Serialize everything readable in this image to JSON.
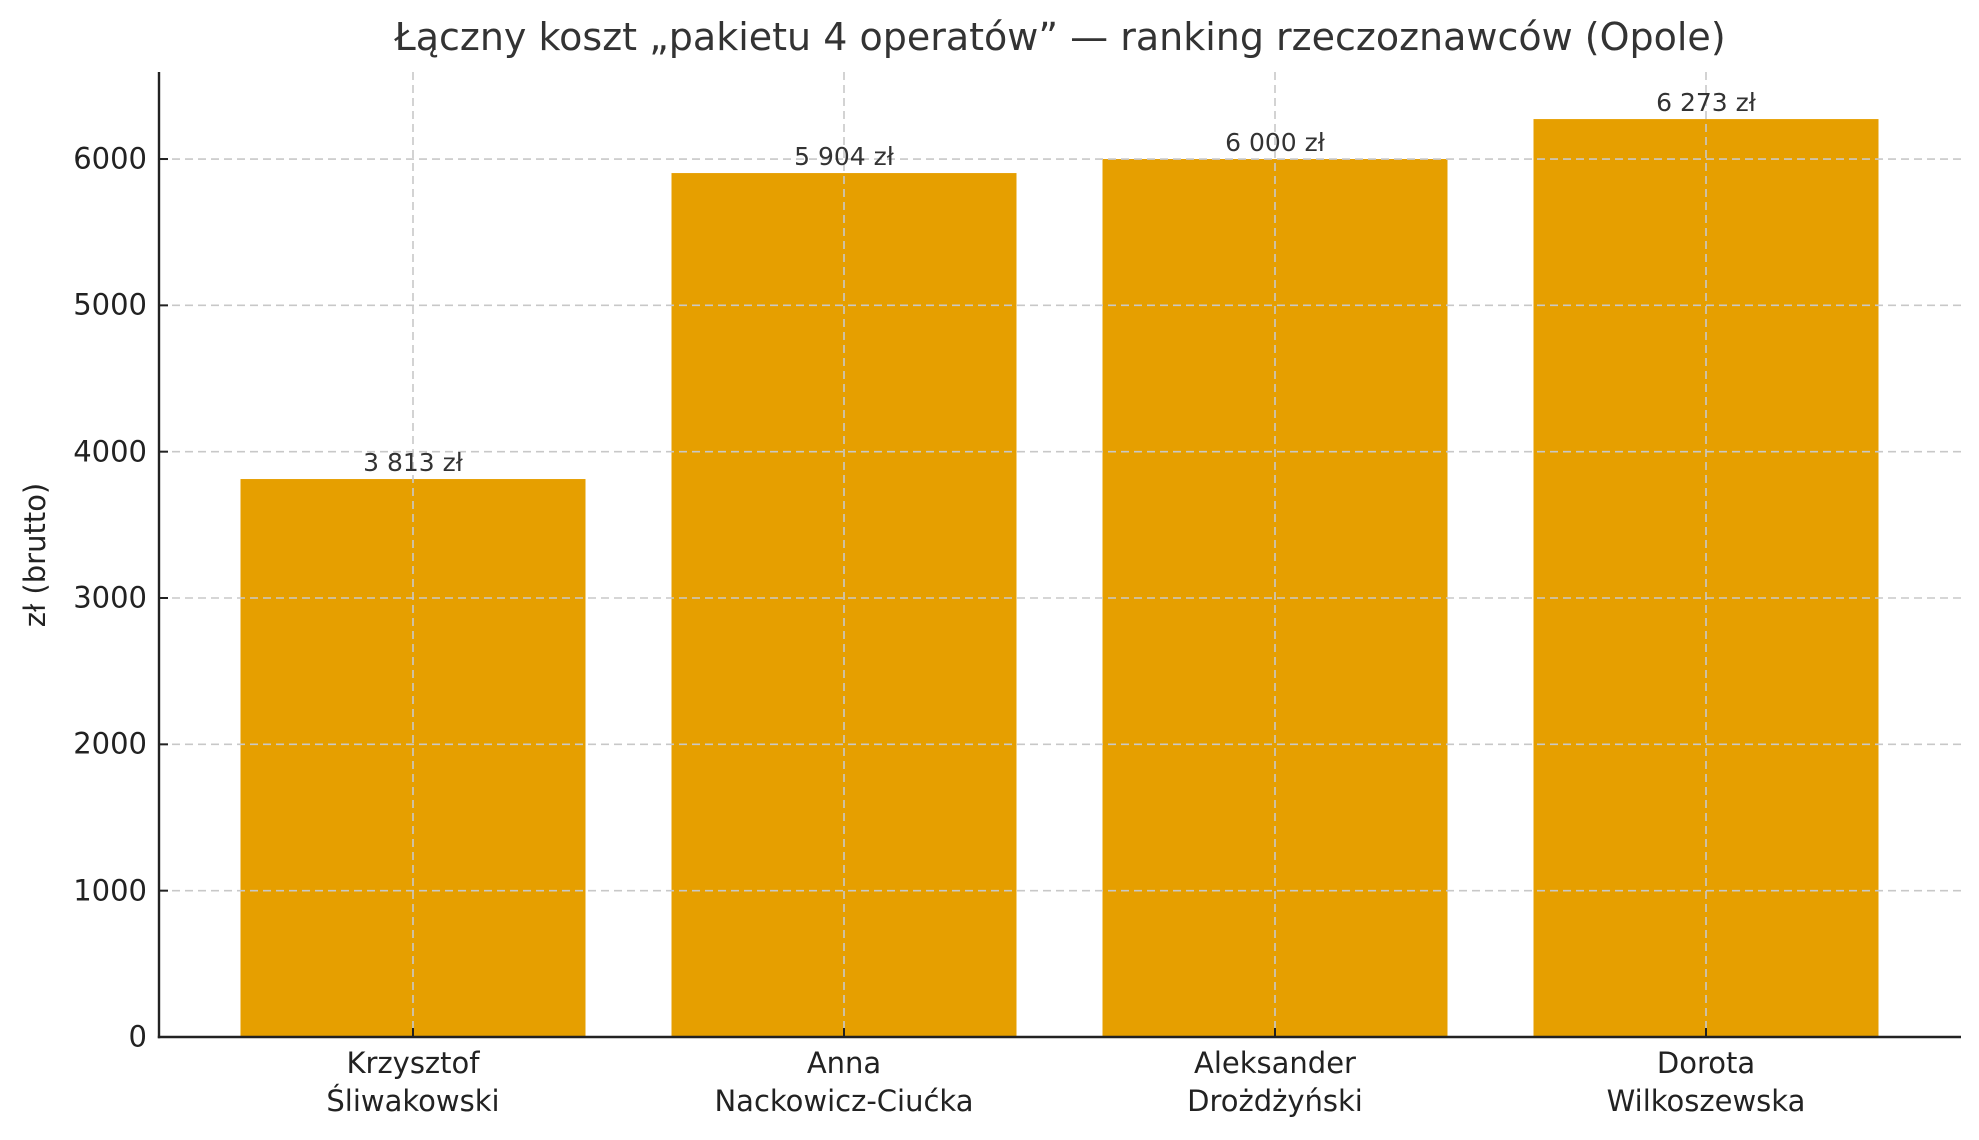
{
  "chart_data": {
    "type": "bar",
    "title": "Łączny koszt „pakietu 4 operatów” — ranking rzeczoznawców (Opole)",
    "xlabel": "",
    "ylabel": "zł (brutto)",
    "categories": [
      [
        "Krzysztof",
        "Śliwakowski"
      ],
      [
        "Anna",
        "Nackowicz-Ciućka"
      ],
      [
        "Aleksander",
        "Drożdżyński"
      ],
      [
        "Dorota",
        "Wilkoszewska"
      ]
    ],
    "values": [
      3813,
      5904,
      6000,
      6273
    ],
    "value_labels": [
      "3 813 zł",
      "5 904 zł",
      "6 000 zł",
      "6 273 zł"
    ],
    "ylim": [
      0,
      6600
    ],
    "yticks": [
      0,
      1000,
      2000,
      3000,
      4000,
      5000,
      6000
    ],
    "grid": true,
    "grid_style": "dashed",
    "legend": null,
    "bar_color": "#E69F00"
  },
  "colors": {
    "bar": "#E69F00",
    "grid": "#c8c8c8",
    "axis": "#222222",
    "text": "#222222",
    "title": "#333333"
  }
}
